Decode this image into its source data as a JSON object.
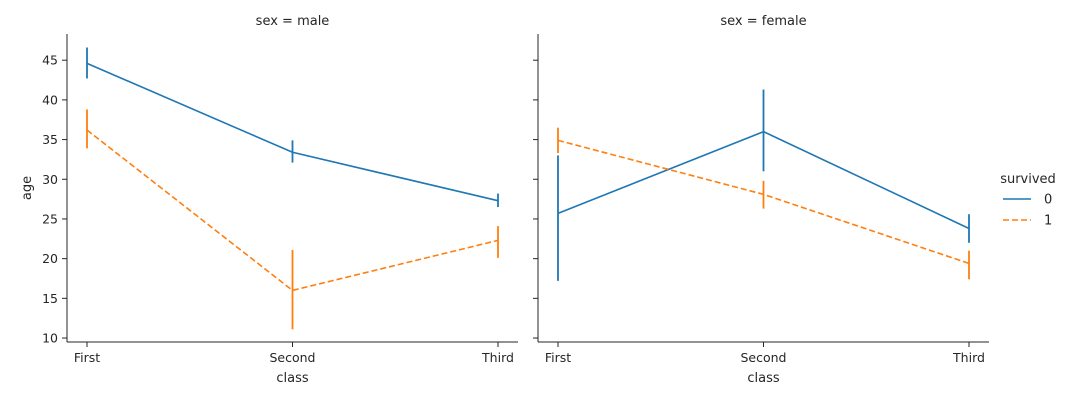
{
  "chart_data": {
    "type": "line",
    "colors": {
      "survived_0": "#1f77b4",
      "survived_1": "#ff7f0e"
    },
    "legend": {
      "title": "survived",
      "placement": "center-right",
      "entries": [
        "0",
        "1"
      ]
    },
    "shared": {
      "categories": [
        "First",
        "Second",
        "Third"
      ],
      "xlabel": "class",
      "ylabel": "age",
      "ylim": [
        9.5,
        48.3
      ],
      "yticks": [
        10,
        15,
        20,
        25,
        30,
        35,
        40,
        45
      ],
      "grid": false
    },
    "panels": [
      {
        "title": "sex = male",
        "series": [
          {
            "name": "0",
            "style": "solid",
            "values": [
              44.6,
              33.4,
              27.3
            ],
            "err": [
              [
                42.7,
                46.6
              ],
              [
                32.1,
                34.9
              ],
              [
                26.5,
                28.2
              ]
            ]
          },
          {
            "name": "1",
            "style": "dashed",
            "values": [
              36.2,
              16.0,
              22.3
            ],
            "err": [
              [
                33.9,
                38.8
              ],
              [
                11.1,
                21.1
              ],
              [
                20.1,
                24.1
              ]
            ]
          }
        ]
      },
      {
        "title": "sex = female",
        "series": [
          {
            "name": "0",
            "style": "solid",
            "values": [
              25.7,
              36.0,
              23.8
            ],
            "err": [
              [
                17.2,
                33.0
              ],
              [
                31.0,
                41.3
              ],
              [
                22.0,
                25.6
              ]
            ]
          },
          {
            "name": "1",
            "style": "dashed",
            "values": [
              34.9,
              28.1,
              19.4
            ],
            "err": [
              [
                33.3,
                36.5
              ],
              [
                26.3,
                29.8
              ],
              [
                17.4,
                21.0
              ]
            ]
          }
        ]
      }
    ]
  }
}
